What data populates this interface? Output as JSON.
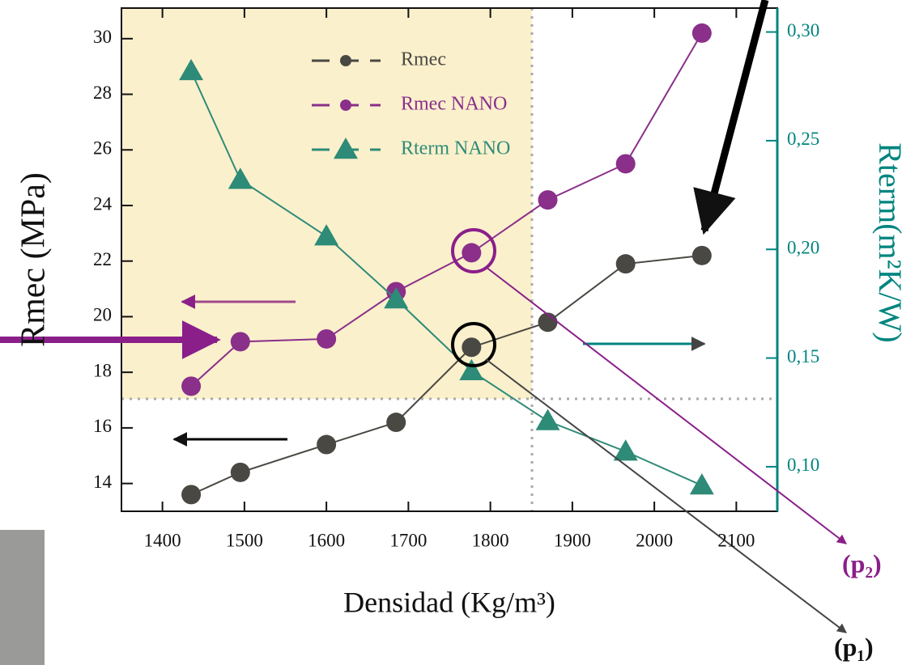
{
  "chart_data": {
    "type": "line",
    "xlabel": "Densidad (Kg/m³)",
    "ylabel": "Rmec (MPa)",
    "y2label": "Rterm(m²K/W)",
    "xlim": [
      1350,
      2150
    ],
    "xticks": [
      1400,
      1500,
      1600,
      1700,
      1800,
      1900,
      2000,
      2100
    ],
    "ylim": [
      13,
      31.1
    ],
    "yticks": [
      14,
      16,
      18,
      20,
      22,
      24,
      26,
      28,
      30
    ],
    "y2lim": [
      0.0795,
      0.311
    ],
    "y2ticks": [
      {
        "value": 0.1,
        "label": "0,10"
      },
      {
        "value": 0.15,
        "label": "0,15"
      },
      {
        "value": 0.2,
        "label": "0,20"
      },
      {
        "value": 0.25,
        "label": "0,25"
      },
      {
        "value": 0.3,
        "label": "0,30"
      }
    ],
    "y2color": "#00857f",
    "legend": "upper center",
    "series": [
      {
        "name": "Rmec",
        "color": "#4a4842",
        "marker": "circle",
        "x": [
          1435,
          1495,
          1600,
          1685,
          1777,
          1870,
          1965,
          2058
        ],
        "values": [
          13.6,
          14.4,
          15.4,
          16.2,
          18.9,
          19.8,
          21.9,
          22.2
        ]
      },
      {
        "name": "Rmec NANO",
        "color": "#8a2f8a",
        "marker": "circle",
        "x": [
          1435,
          1495,
          1600,
          1685,
          1777,
          1870,
          1965,
          2058
        ],
        "values": [
          17.5,
          19.1,
          19.2,
          20.9,
          22.3,
          24.2,
          25.5,
          30.2
        ]
      },
      {
        "name": "Rterm NANO",
        "color": "#2e8b78",
        "marker": "triangle",
        "axis": "y2",
        "x": [
          1435,
          1495,
          1600,
          1685,
          1777,
          1870,
          1965,
          2058
        ],
        "values": [
          0.282,
          0.232,
          0.206,
          0.177,
          0.144,
          0.121,
          0.107,
          0.0914
        ]
      }
    ],
    "annotations": [
      "(p₂)",
      "(p₁)"
    ]
  }
}
